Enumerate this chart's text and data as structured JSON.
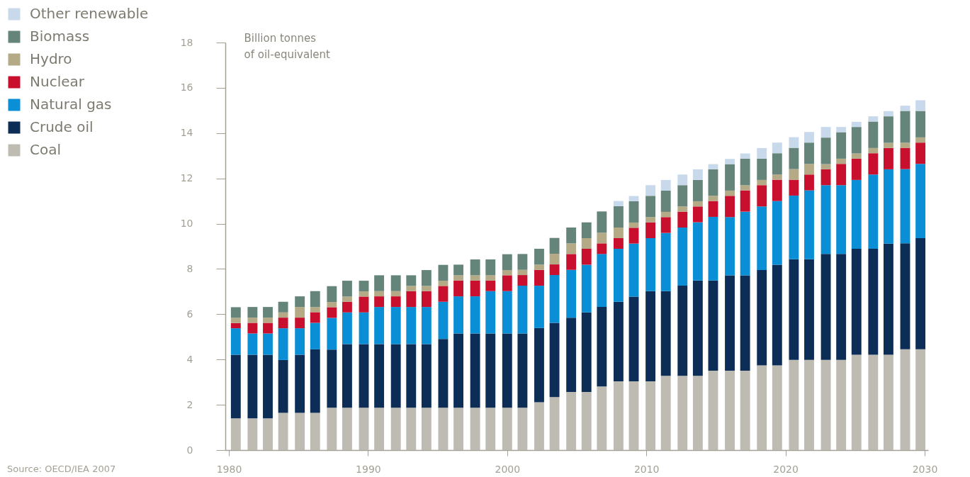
{
  "chart_data": {
    "type": "bar",
    "stacked": true,
    "legend": "top left",
    "ylabel": "Billion tonnes\nof oil-equivalent",
    "annotations": [
      "Source: OECD/IEA 2007"
    ],
    "xlim": [
      1980,
      2030
    ],
    "xticks": [
      1980,
      1990,
      2000,
      2010,
      2020,
      2030
    ],
    "ylim": [
      0,
      18
    ],
    "yticks": [
      0,
      2,
      4,
      6,
      8,
      10,
      12,
      14,
      16,
      18
    ],
    "x": [
      1980.5,
      1981.7,
      1982.8,
      1983.9,
      1985.1,
      1986.2,
      1987.4,
      1988.5,
      1989.7,
      1990.8,
      1992.0,
      1993.1,
      1994.2,
      1995.4,
      1996.5,
      1997.7,
      1998.8,
      2000.0,
      2001.1,
      2002.3,
      2003.4,
      2004.6,
      2005.7,
      2006.8,
      2008.0,
      2009.1,
      2010.3,
      2011.4,
      2012.6,
      2013.7,
      2014.8,
      2016.0,
      2017.1,
      2018.3,
      2019.4,
      2020.6,
      2021.7,
      2022.9,
      2024.0,
      2025.1,
      2026.3,
      2027.4,
      2028.6,
      2029.7
    ],
    "series": [
      {
        "name": "Coal",
        "color": "#bebcb2",
        "values": [
          1.4,
          1.4,
          1.4,
          1.64,
          1.64,
          1.64,
          1.87,
          1.87,
          1.87,
          1.87,
          1.87,
          1.87,
          1.87,
          1.87,
          1.87,
          1.87,
          1.87,
          1.87,
          1.87,
          2.11,
          2.34,
          2.57,
          2.57,
          2.81,
          3.04,
          3.04,
          3.04,
          3.28,
          3.28,
          3.28,
          3.51,
          3.51,
          3.51,
          3.74,
          3.74,
          3.98,
          3.98,
          3.98,
          3.98,
          4.21,
          4.21,
          4.21,
          4.45,
          4.45
        ]
      },
      {
        "name": "Crude oil",
        "color": "#0c2d55",
        "values": [
          2.81,
          2.81,
          2.81,
          2.34,
          2.57,
          2.81,
          2.57,
          2.81,
          2.81,
          2.81,
          2.81,
          2.81,
          2.81,
          3.04,
          3.28,
          3.28,
          3.28,
          3.28,
          3.28,
          3.28,
          3.28,
          3.28,
          3.51,
          3.51,
          3.51,
          3.74,
          3.98,
          3.74,
          3.98,
          4.21,
          3.98,
          4.21,
          4.21,
          4.21,
          4.45,
          4.45,
          4.45,
          4.68,
          4.68,
          4.68,
          4.68,
          4.91,
          4.68,
          4.91
        ]
      },
      {
        "name": "Natural gas",
        "color": "#0a8fd6",
        "values": [
          1.17,
          0.94,
          0.94,
          1.4,
          1.17,
          1.17,
          1.4,
          1.4,
          1.4,
          1.64,
          1.64,
          1.64,
          1.64,
          1.64,
          1.64,
          1.64,
          1.87,
          1.87,
          2.11,
          1.87,
          2.11,
          2.11,
          2.11,
          2.34,
          2.34,
          2.34,
          2.34,
          2.57,
          2.57,
          2.57,
          2.81,
          2.57,
          2.81,
          2.81,
          2.81,
          2.81,
          3.04,
          3.04,
          3.04,
          3.04,
          3.28,
          3.28,
          3.28,
          3.28
        ]
      },
      {
        "name": "Nuclear",
        "color": "#c8102e",
        "values": [
          0.23,
          0.47,
          0.47,
          0.47,
          0.47,
          0.47,
          0.47,
          0.47,
          0.7,
          0.47,
          0.47,
          0.7,
          0.7,
          0.7,
          0.7,
          0.7,
          0.47,
          0.7,
          0.47,
          0.7,
          0.47,
          0.7,
          0.7,
          0.47,
          0.47,
          0.7,
          0.7,
          0.7,
          0.7,
          0.7,
          0.7,
          0.94,
          0.94,
          0.94,
          0.94,
          0.7,
          0.7,
          0.7,
          0.94,
          0.94,
          0.94,
          0.94,
          0.94,
          0.94
        ]
      },
      {
        "name": "Hydro",
        "color": "#b5aa86",
        "values": [
          0.23,
          0.23,
          0.23,
          0.23,
          0.47,
          0.23,
          0.23,
          0.23,
          0.23,
          0.23,
          0.23,
          0.23,
          0.23,
          0.23,
          0.23,
          0.23,
          0.23,
          0.23,
          0.23,
          0.23,
          0.47,
          0.47,
          0.47,
          0.47,
          0.47,
          0.23,
          0.23,
          0.23,
          0.23,
          0.23,
          0.23,
          0.23,
          0.23,
          0.23,
          0.23,
          0.47,
          0.47,
          0.23,
          0.23,
          0.23,
          0.23,
          0.23,
          0.23,
          0.23
        ]
      },
      {
        "name": "Biomass",
        "color": "#66857a",
        "values": [
          0.47,
          0.47,
          0.47,
          0.47,
          0.47,
          0.7,
          0.7,
          0.7,
          0.47,
          0.7,
          0.7,
          0.47,
          0.7,
          0.7,
          0.47,
          0.7,
          0.7,
          0.7,
          0.7,
          0.7,
          0.7,
          0.7,
          0.7,
          0.94,
          0.94,
          0.94,
          0.94,
          0.94,
          0.94,
          0.94,
          1.17,
          1.17,
          1.17,
          0.94,
          0.94,
          0.94,
          0.94,
          1.17,
          1.17,
          1.17,
          1.17,
          1.17,
          1.4,
          1.17
        ]
      },
      {
        "name": "Other renewable",
        "color": "#c9d9ec",
        "values": [
          null,
          null,
          null,
          null,
          null,
          null,
          null,
          null,
          null,
          null,
          null,
          null,
          null,
          null,
          null,
          null,
          null,
          null,
          null,
          null,
          null,
          null,
          null,
          null,
          0.23,
          0.23,
          0.47,
          0.47,
          0.47,
          0.47,
          0.23,
          0.23,
          0.23,
          0.47,
          0.47,
          0.47,
          0.47,
          0.47,
          0.23,
          0.23,
          0.23,
          0.23,
          0.23,
          0.47
        ]
      }
    ]
  }
}
